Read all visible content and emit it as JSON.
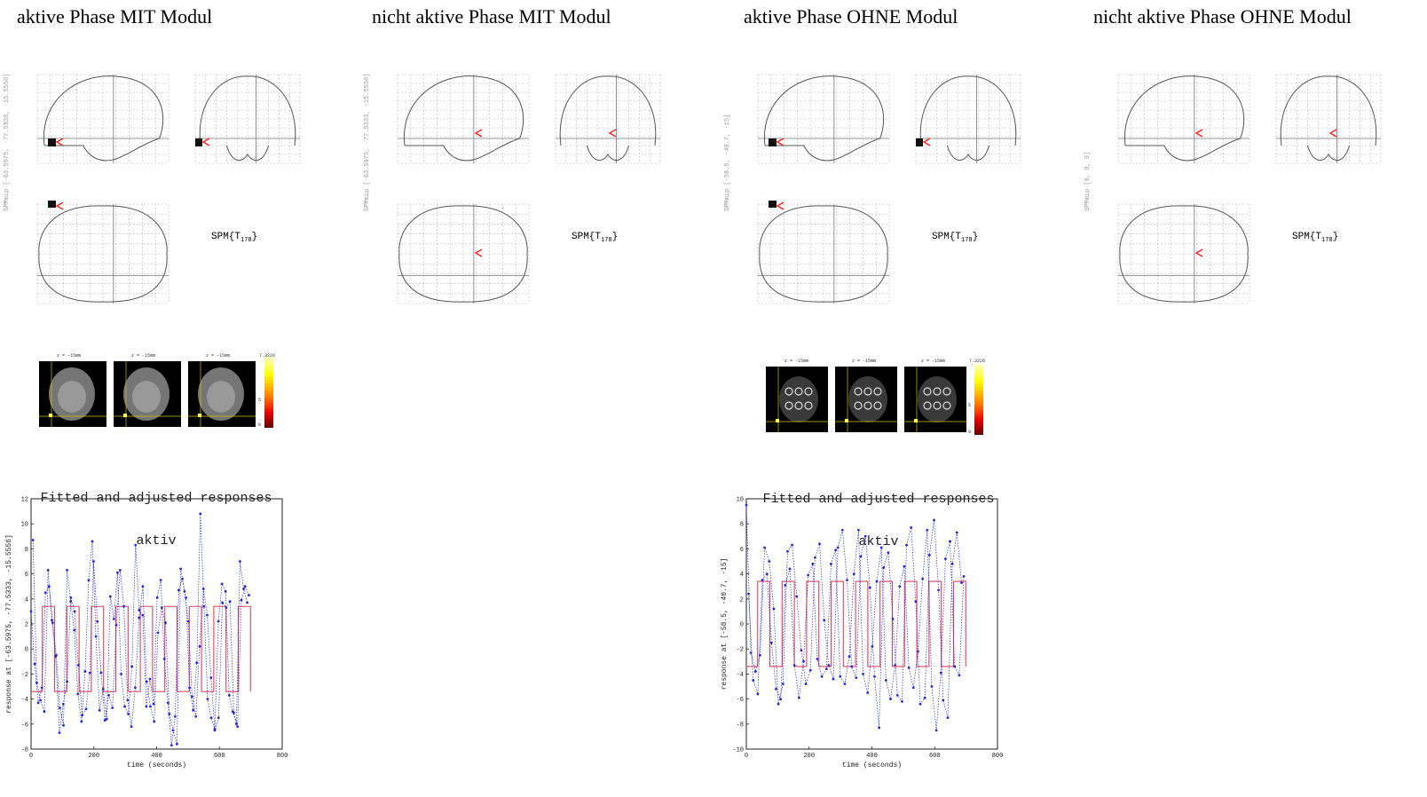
{
  "headings": [
    "aktive Phase MIT Modul",
    "nicht aktive Phase MIT Modul",
    "aktive Phase OHNE Modul",
    "nicht aktive Phase OHNE Modul"
  ],
  "panels": [
    {
      "spm_label": "SPM{T",
      "df": "178",
      "side_label": "SPMmip [-63.5975, -77.5333, -15.5556]",
      "activation": true
    },
    {
      "spm_label": "SPM{T",
      "df": "178",
      "side_label": "SPMmip [-63.5975, -77.5333, -15.5556]",
      "activation": false
    },
    {
      "spm_label": "SPM{T",
      "df": "178",
      "side_label": "SPMmip [-58.5, -40.7, -15]",
      "activation": true
    },
    {
      "spm_label": "SPM{T",
      "df": "178",
      "side_label": "SPMmip [0, 0, 0]",
      "activation": false
    }
  ],
  "slices": {
    "caption": "z = -15mm",
    "colorbar_max": "7.3226",
    "colorbar_mid": "5",
    "colorbar_min": "0"
  },
  "plot_title_line1": "Fitted and adjusted responses",
  "plot_title_line2": "aktiv",
  "plot_xlabel": "time (seconds)",
  "colors": {
    "fitted": "#e0445a",
    "adjusted": "#2727d8"
  },
  "chart_data": [
    {
      "type": "line",
      "title": "Fitted and adjusted responses aktiv",
      "xlabel": "time (seconds)",
      "ylabel": "response at [-63.5975, -77.5333, -15.5556]",
      "xlim": [
        0,
        800
      ],
      "ylim": [
        -8,
        12
      ],
      "xticks": [
        0,
        200,
        400,
        600,
        800
      ],
      "yticks": [
        -8,
        -6,
        -4,
        -2,
        0,
        2,
        4,
        6,
        8,
        10,
        12
      ],
      "fitted_block": {
        "period": 78,
        "on_start": 36,
        "on_len": 39,
        "high": 3.4,
        "low": -3.4,
        "end": 700
      },
      "series": [
        {
          "values": [
            3.0,
            -1.2,
            -4.3,
            -3.1,
            4.5,
            5.0,
            2.1,
            -0.5,
            -4.7,
            -6.1,
            6.3,
            3.8,
            1.5,
            -3.6,
            -5.8,
            -1.8,
            5.5,
            8.6,
            1.0,
            -4.9,
            -3.2,
            -5.6,
            4.2,
            2.4,
            6.1,
            -2.0,
            -4.6,
            -5.2,
            -1.4,
            8.3,
            3.1,
            2.7,
            -4.6,
            -2.4,
            -4.4,
            4.1,
            5.5,
            -0.8,
            -4.3,
            -7.7,
            -5.4,
            4.7,
            5.6,
            4.1,
            -3.1,
            -4.9,
            -1.1,
            10.8,
            3.4,
            -4.0,
            -5.5,
            -6.4,
            2.2,
            5.2,
            4.6,
            -3.7,
            -5.0,
            -6.0,
            7.0,
            4.8,
            3.7
          ]
        },
        {
          "values": [
            8.7,
            -2.7,
            -4.1,
            -5.0,
            6.3,
            2.3,
            -0.6,
            -6.7,
            -4.4,
            -2.6,
            4.1,
            3.0,
            -1.3,
            -5.3,
            -4.8,
            -1.9,
            7.0,
            2.2,
            -1.9,
            -5.7,
            -3.7,
            -4.7,
            1.9,
            6.3,
            3.4,
            -4.1,
            -6.2,
            -3.1,
            2.5,
            5.0,
            -2.6,
            -4.6,
            -5.8,
            1.3,
            3.3,
            2.1,
            -5.2,
            -6.5,
            -7.6,
            6.4,
            4.6,
            2.2,
            -3.8,
            -5.4,
            0.2,
            4.8,
            2.7,
            -2.3,
            -6.5,
            -5.5,
            3.7,
            3.3,
            3.8,
            -5.1,
            -6.2,
            3.9,
            5.0,
            4.3
          ]
        }
      ]
    },
    {
      "type": "line",
      "title": "Fitted and adjusted responses aktiv",
      "xlabel": "time (seconds)",
      "ylabel": "response at [-58.5, -40.7, -15]",
      "xlim": [
        0,
        800
      ],
      "ylim": [
        -10,
        10
      ],
      "xticks": [
        0,
        200,
        400,
        600,
        800
      ],
      "yticks": [
        -10,
        -8,
        -6,
        -4,
        -2,
        0,
        2,
        4,
        6,
        8,
        10
      ],
      "fitted_block": {
        "period": 78,
        "on_start": 36,
        "on_len": 39,
        "high": 3.4,
        "low": -3.4,
        "end": 700
      },
      "series": [
        {
          "values": [
            9.5,
            -2.3,
            -3.8,
            -2.5,
            6.1,
            5.0,
            1.2,
            -6.4,
            -4.8,
            5.8,
            6.3,
            2.2,
            -2.1,
            -4.8,
            -3.7,
            5.3,
            6.4,
            0.3,
            -3.3,
            -4.4,
            6.1,
            7.5,
            3.5,
            -3.4,
            -4.3,
            5.4,
            7.0,
            2.9,
            -4.2,
            -8.3,
            4.5,
            5.7,
            0.4,
            -5.7,
            -6.2,
            6.3,
            7.7,
            1.8,
            -6.4,
            -5.9,
            5.5,
            8.3,
            2.7,
            -6.1,
            -7.5,
            4.8,
            7.3,
            3.3
          ]
        },
        {
          "values": [
            2.4,
            -4.5,
            -5.6,
            3.5,
            4.0,
            -1.5,
            -5.2,
            -6.0,
            3.1,
            4.4,
            -3.3,
            -5.9,
            -3.0,
            3.9,
            4.8,
            -2.8,
            -4.2,
            -3.6,
            4.8,
            5.9,
            -4.2,
            -4.8,
            -2.6,
            4.0,
            7.5,
            -4.0,
            -5.5,
            -1.8,
            3.4,
            6.1,
            -4.5,
            -6.0,
            -3.3,
            3.0,
            4.6,
            -3.5,
            -5.1,
            -2.2,
            3.6,
            7.5,
            -5.0,
            -8.5,
            -3.9,
            5.2,
            6.6,
            -3.4,
            -4.1,
            3.8
          ]
        }
      ]
    }
  ]
}
